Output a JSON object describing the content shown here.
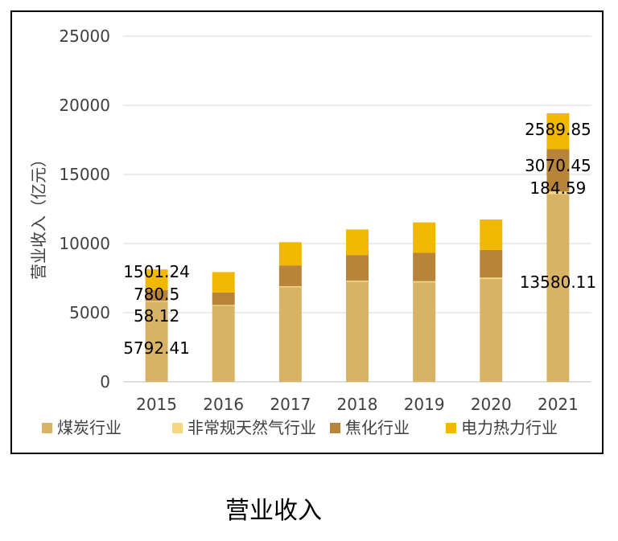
{
  "caption": "营业收入",
  "chart_data": {
    "type": "bar",
    "stacked": true,
    "categories": [
      "2015",
      "2016",
      "2017",
      "2018",
      "2019",
      "2020",
      "2021"
    ],
    "ylabel": "营业收入（亿元）",
    "ylim": [
      0,
      25000
    ],
    "yticks": [
      0,
      5000,
      10000,
      15000,
      20000,
      25000
    ],
    "grid": true,
    "legend_position": "bottom",
    "series": [
      {
        "name": "煤炭行业",
        "color": "#D9B365",
        "values": [
          5792.41,
          5500,
          6850,
          7250,
          7200,
          7450,
          13580.11
        ]
      },
      {
        "name": "非常规天然气行业",
        "color": "#F5D77E",
        "values": [
          58.12,
          60,
          70,
          70,
          80,
          90,
          184.59
        ]
      },
      {
        "name": "焦化行业",
        "color": "#B8843A",
        "values": [
          780.5,
          900,
          1500,
          1850,
          2050,
          2000,
          3070.45
        ]
      },
      {
        "name": "电力热力行业",
        "color": "#F2B800",
        "values": [
          1501.24,
          1480,
          1680,
          1850,
          2200,
          2200,
          2589.85
        ]
      }
    ],
    "data_labels": [
      {
        "category": "2015",
        "series": "电力热力行业",
        "text": "1501.24"
      },
      {
        "category": "2015",
        "series": "焦化行业",
        "text": "780.5"
      },
      {
        "category": "2015",
        "series": "非常规天然气行业",
        "text": "58.12"
      },
      {
        "category": "2015",
        "series": "煤炭行业",
        "text": "5792.41"
      },
      {
        "category": "2021",
        "series": "电力热力行业",
        "text": "2589.85"
      },
      {
        "category": "2021",
        "series": "焦化行业",
        "text": "3070.45"
      },
      {
        "category": "2021",
        "series": "非常规天然气行业",
        "text": "184.59"
      },
      {
        "category": "2021",
        "series": "煤炭行业",
        "text": "13580.11"
      }
    ]
  }
}
